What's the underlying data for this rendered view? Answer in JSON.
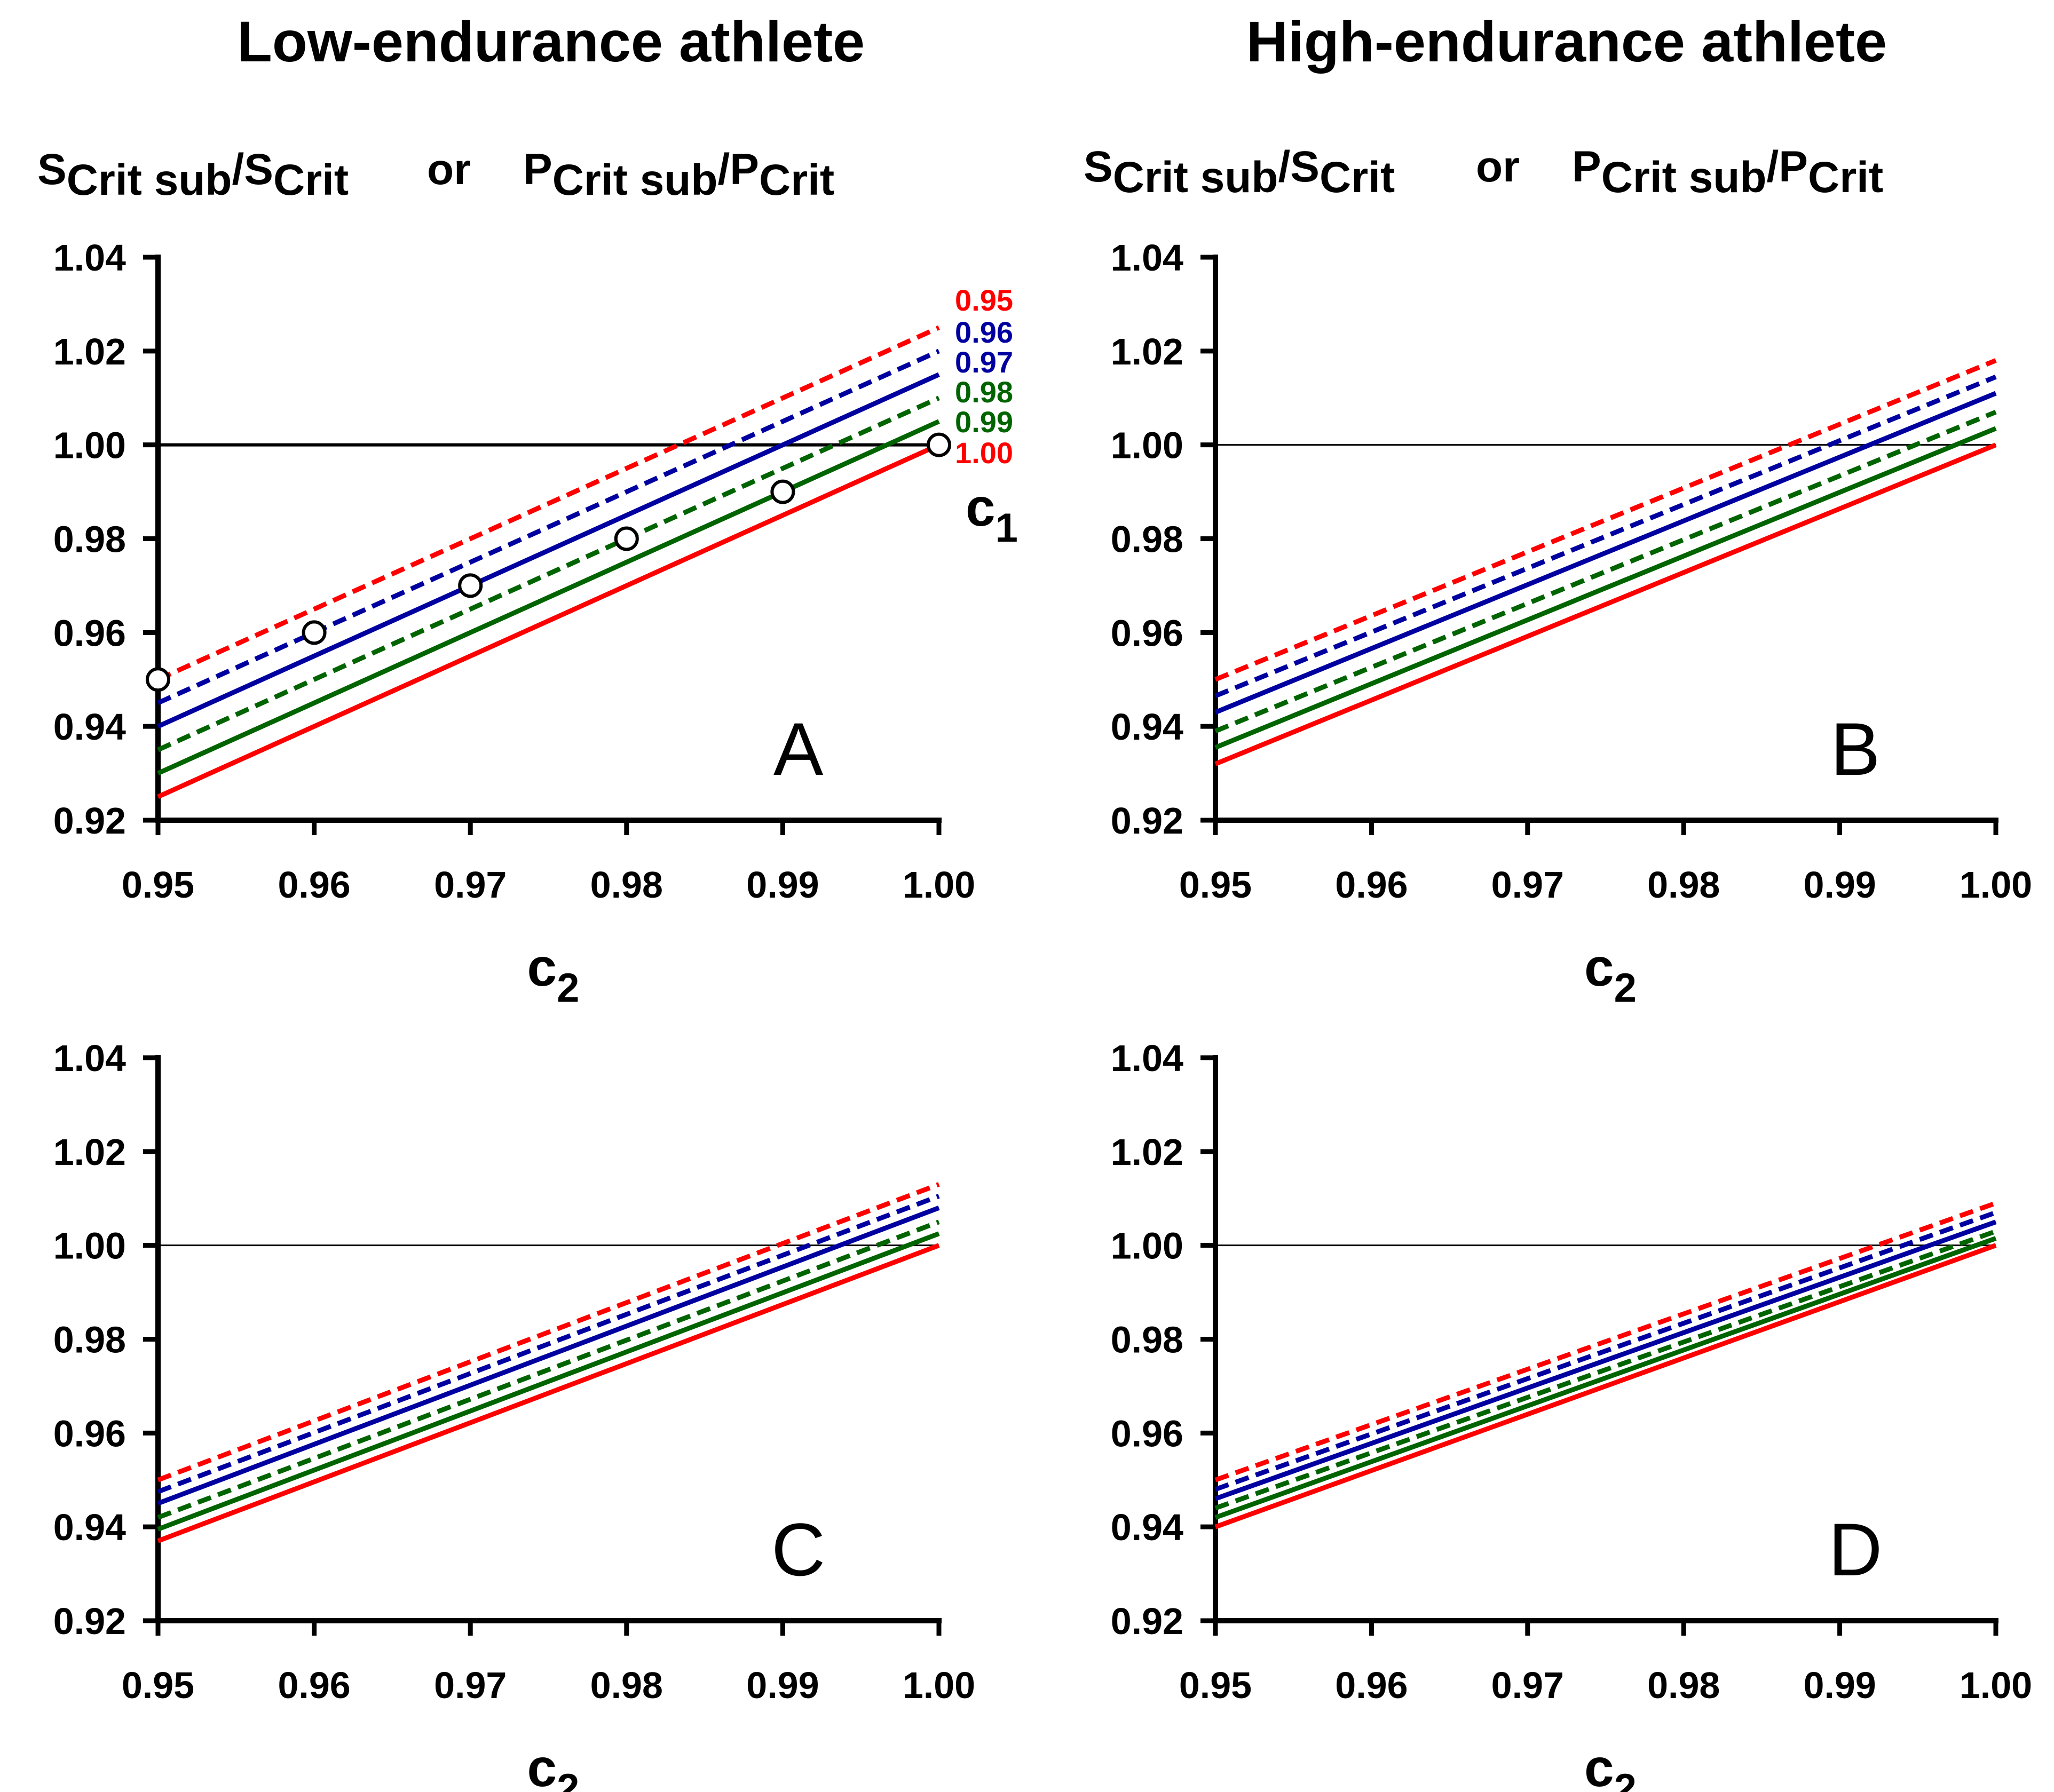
{
  "figure": {
    "column_titles": [
      "Low-endurance athlete",
      "High-endurance athlete"
    ],
    "ylabel": {
      "s_sym": "S",
      "s_sub": "Crit sub",
      "slash": "/",
      "s2_sym": "S",
      "s2_sub": "Crit",
      "or": "or",
      "p_sym": "P",
      "p_sub": "Crit sub",
      "p2_sym": "P",
      "p2_sub": "Crit"
    }
  },
  "chart_data": [
    {
      "type": "line",
      "panel_label": "A",
      "xlabel": "c",
      "xlabel_subscript": "2",
      "x": [
        0.95,
        1.0
      ],
      "xlim": [
        0.95,
        1.0
      ],
      "ylim": [
        0.92,
        1.04
      ],
      "xticks": [
        "0.95",
        "0.96",
        "0.97",
        "0.98",
        "0.99",
        "1.00"
      ],
      "yticks": [
        "0.92",
        "0.94",
        "0.96",
        "0.98",
        "1.00",
        "1.02",
        "1.04"
      ],
      "reference_line": 1.0,
      "reference_width": "thick",
      "legend_title": "c",
      "legend_title_subscript": "1",
      "series": [
        {
          "name": "0.95",
          "color": "#ff0000",
          "dash": true,
          "values": [
            0.95,
            1.025
          ]
        },
        {
          "name": "0.96",
          "color": "#0000a0",
          "dash": true,
          "values": [
            0.945,
            1.02
          ]
        },
        {
          "name": "0.97",
          "color": "#0000a0",
          "dash": false,
          "values": [
            0.94,
            1.015
          ]
        },
        {
          "name": "0.98",
          "color": "#006400",
          "dash": true,
          "values": [
            0.935,
            1.01
          ]
        },
        {
          "name": "0.99",
          "color": "#006400",
          "dash": false,
          "values": [
            0.93,
            1.005
          ]
        },
        {
          "name": "1.00",
          "color": "#ff0000",
          "dash": false,
          "values": [
            0.925,
            1.0
          ]
        }
      ],
      "markers": {
        "x": [
          0.95,
          0.96,
          0.97,
          0.98,
          0.99,
          1.0
        ],
        "y": [
          0.95,
          0.96,
          0.97,
          0.98,
          0.99,
          1.0
        ]
      }
    },
    {
      "type": "line",
      "panel_label": "B",
      "xlabel": "c",
      "xlabel_subscript": "2",
      "x": [
        0.95,
        1.0
      ],
      "xlim": [
        0.95,
        1.0
      ],
      "ylim": [
        0.92,
        1.04
      ],
      "xticks": [
        "0.95",
        "0.96",
        "0.97",
        "0.98",
        "0.99",
        "1.00"
      ],
      "yticks": [
        "0.92",
        "0.94",
        "0.96",
        "0.98",
        "1.00",
        "1.02",
        "1.04"
      ],
      "reference_line": 1.0,
      "reference_width": "thin",
      "series": [
        {
          "name": "0.95",
          "color": "#ff0000",
          "dash": true,
          "values": [
            0.95,
            1.018
          ]
        },
        {
          "name": "0.96",
          "color": "#0000a0",
          "dash": true,
          "values": [
            0.9465,
            1.0145
          ]
        },
        {
          "name": "0.97",
          "color": "#0000a0",
          "dash": false,
          "values": [
            0.943,
            1.011
          ]
        },
        {
          "name": "0.98",
          "color": "#006400",
          "dash": true,
          "values": [
            0.939,
            1.007
          ]
        },
        {
          "name": "0.99",
          "color": "#006400",
          "dash": false,
          "values": [
            0.9355,
            1.0035
          ]
        },
        {
          "name": "1.00",
          "color": "#ff0000",
          "dash": false,
          "values": [
            0.932,
            1.0
          ]
        }
      ]
    },
    {
      "type": "line",
      "panel_label": "C",
      "xlabel": "c",
      "xlabel_subscript": "2",
      "x": [
        0.95,
        1.0
      ],
      "xlim": [
        0.95,
        1.0
      ],
      "ylim": [
        0.92,
        1.04
      ],
      "xticks": [
        "0.95",
        "0.96",
        "0.97",
        "0.98",
        "0.99",
        "1.00"
      ],
      "yticks": [
        "0.92",
        "0.94",
        "0.96",
        "0.98",
        "1.00",
        "1.02",
        "1.04"
      ],
      "reference_line": 1.0,
      "reference_width": "thin",
      "series": [
        {
          "name": "0.95",
          "color": "#ff0000",
          "dash": true,
          "values": [
            0.95,
            1.013
          ]
        },
        {
          "name": "0.96",
          "color": "#0000a0",
          "dash": true,
          "values": [
            0.9475,
            1.0105
          ]
        },
        {
          "name": "0.97",
          "color": "#0000a0",
          "dash": false,
          "values": [
            0.945,
            1.008
          ]
        },
        {
          "name": "0.98",
          "color": "#006400",
          "dash": true,
          "values": [
            0.942,
            1.005
          ]
        },
        {
          "name": "0.99",
          "color": "#006400",
          "dash": false,
          "values": [
            0.9395,
            1.0025
          ]
        },
        {
          "name": "1.00",
          "color": "#ff0000",
          "dash": false,
          "values": [
            0.937,
            1.0
          ]
        }
      ]
    },
    {
      "type": "line",
      "panel_label": "D",
      "xlabel": "c",
      "xlabel_subscript": "2",
      "x": [
        0.95,
        1.0
      ],
      "xlim": [
        0.95,
        1.0
      ],
      "ylim": [
        0.92,
        1.04
      ],
      "xticks": [
        "0.95",
        "0.96",
        "0.97",
        "0.98",
        "0.99",
        "1.00"
      ],
      "yticks": [
        "0.92",
        "0.94",
        "0.96",
        "0.98",
        "1.00",
        "1.02",
        "1.04"
      ],
      "reference_line": 1.0,
      "reference_width": "thin",
      "series": [
        {
          "name": "0.95",
          "color": "#ff0000",
          "dash": true,
          "values": [
            0.95,
            1.009
          ]
        },
        {
          "name": "0.96",
          "color": "#0000a0",
          "dash": true,
          "values": [
            0.948,
            1.007
          ]
        },
        {
          "name": "0.97",
          "color": "#0000a0",
          "dash": false,
          "values": [
            0.946,
            1.005
          ]
        },
        {
          "name": "0.98",
          "color": "#006400",
          "dash": true,
          "values": [
            0.944,
            1.003
          ]
        },
        {
          "name": "0.99",
          "color": "#006400",
          "dash": false,
          "values": [
            0.942,
            1.0015
          ]
        },
        {
          "name": "1.00",
          "color": "#ff0000",
          "dash": false,
          "values": [
            0.94,
            1.0
          ]
        }
      ]
    }
  ]
}
